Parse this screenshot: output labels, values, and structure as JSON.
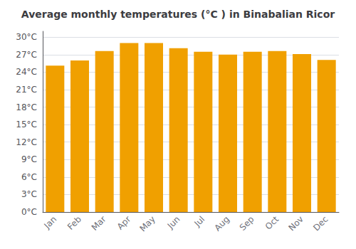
{
  "chart_data": {
    "type": "bar",
    "title": "Average monthly temperatures (°C ) in Binabalian Ricor",
    "categories": [
      "Jan",
      "Feb",
      "Mar",
      "Apr",
      "May",
      "Jun",
      "Jul",
      "Aug",
      "Sep",
      "Oct",
      "Nov",
      "Dec"
    ],
    "values": [
      25.1,
      26.0,
      27.6,
      29.0,
      29.0,
      28.1,
      27.5,
      27.0,
      27.5,
      27.6,
      27.1,
      26.1
    ],
    "color": "#F0A000",
    "ylim": [
      0,
      31
    ],
    "yticks": [
      {
        "value": 0,
        "label": "0°C"
      },
      {
        "value": 3,
        "label": "3°C"
      },
      {
        "value": 6,
        "label": "6°C"
      },
      {
        "value": 9,
        "label": "9°C"
      },
      {
        "value": 12,
        "label": "12°C"
      },
      {
        "value": 15,
        "label": "15°C"
      },
      {
        "value": 18,
        "label": "18°C"
      },
      {
        "value": 21,
        "label": "21°C"
      },
      {
        "value": 24,
        "label": "24°C"
      },
      {
        "value": 27,
        "label": "27°C"
      },
      {
        "value": 30,
        "label": "30°C"
      }
    ],
    "grid": true
  }
}
